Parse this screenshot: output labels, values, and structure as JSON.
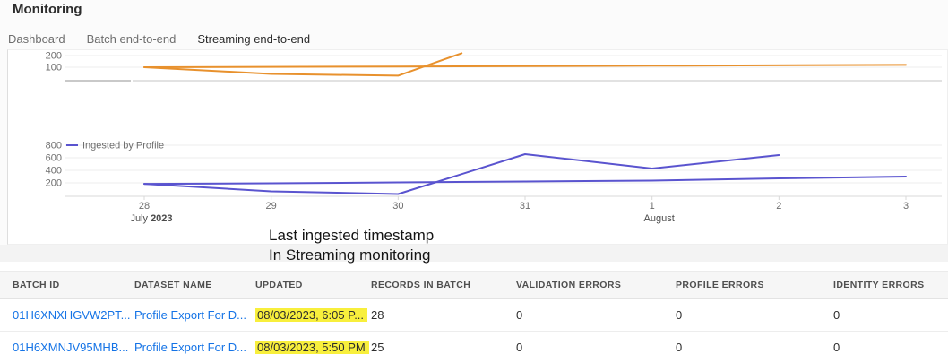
{
  "page": {
    "title": "Monitoring"
  },
  "tabs": [
    {
      "label": "Dashboard",
      "active": false
    },
    {
      "label": "Batch end-to-end",
      "active": false
    },
    {
      "label": "Streaming end-to-end",
      "active": true
    }
  ],
  "annotation": {
    "line1": "Last ingested timestamp",
    "line2": "In Streaming monitoring"
  },
  "colors": {
    "orange": "#e8912d",
    "purple": "#5a54cf",
    "link": "#1473e6",
    "highlight": "#f8ef3c",
    "grid": "#ececec",
    "baseline": "#d9d9d9",
    "tick_text": "#6e6e6e",
    "month_text": "#4b4b4b"
  },
  "chart_data": [
    {
      "type": "line",
      "title": "",
      "note": "upper chart is vertically clipped; only bottom of plot visible",
      "color": "#e8912d",
      "y_ticks": [
        100,
        200
      ],
      "ylim": [
        0,
        250
      ],
      "grid": true,
      "legend_position": "none",
      "series": [
        {
          "name": "line-a",
          "points": [
            [
              28,
              100
            ],
            [
              30,
              106
            ],
            [
              32,
              113
            ],
            [
              34,
              120
            ]
          ]
        },
        {
          "name": "line-b",
          "points": [
            [
              28,
              100
            ],
            [
              29,
              42
            ],
            [
              30,
              28
            ],
            [
              30.5,
              220
            ]
          ]
        }
      ]
    },
    {
      "type": "line",
      "title": "",
      "color": "#5a54cf",
      "legend": [
        "Ingested by Profile"
      ],
      "legend_position": "top-left",
      "y_ticks": [
        200,
        400,
        600,
        800
      ],
      "ylim": [
        0,
        900
      ],
      "grid": true,
      "x_tick_labels": [
        "28",
        "29",
        "30",
        "31",
        "1",
        "2",
        "3"
      ],
      "month_labels": [
        {
          "text": "July",
          "bold": "2023",
          "day": 28
        },
        {
          "text": "August",
          "bold": "",
          "day": 32
        }
      ],
      "series": [
        {
          "name": "line-1",
          "points": [
            [
              28,
              185
            ],
            [
              29,
              64
            ],
            [
              30,
              21
            ],
            [
              31,
              657
            ],
            [
              32,
              428
            ],
            [
              33,
              643
            ]
          ]
        },
        {
          "name": "line-2",
          "points": [
            [
              28,
              185
            ],
            [
              29,
              193
            ],
            [
              30,
              207
            ],
            [
              31,
              221
            ],
            [
              32,
              236
            ],
            [
              33,
              271
            ],
            [
              34,
              300
            ]
          ]
        }
      ]
    }
  ],
  "table": {
    "columns": [
      "BATCH ID",
      "DATASET NAME",
      "UPDATED",
      "RECORDS IN BATCH",
      "VALIDATION ERRORS",
      "PROFILE ERRORS",
      "IDENTITY ERRORS"
    ],
    "rows": [
      {
        "batch_id": "01H6XNXHGVW2PT...",
        "dataset_name": "Profile Export For D...",
        "updated": "08/03/2023, 6:05 P...",
        "updated_highlighted": true,
        "records_in_batch": "28",
        "validation_errors": "0",
        "profile_errors": "0",
        "identity_errors": "0"
      },
      {
        "batch_id": "01H6XMNJV95MHB...",
        "dataset_name": "Profile Export For D...",
        "updated": "08/03/2023, 5:50 PM",
        "updated_highlighted": true,
        "records_in_batch": "25",
        "validation_errors": "0",
        "profile_errors": "0",
        "identity_errors": "0"
      }
    ]
  }
}
